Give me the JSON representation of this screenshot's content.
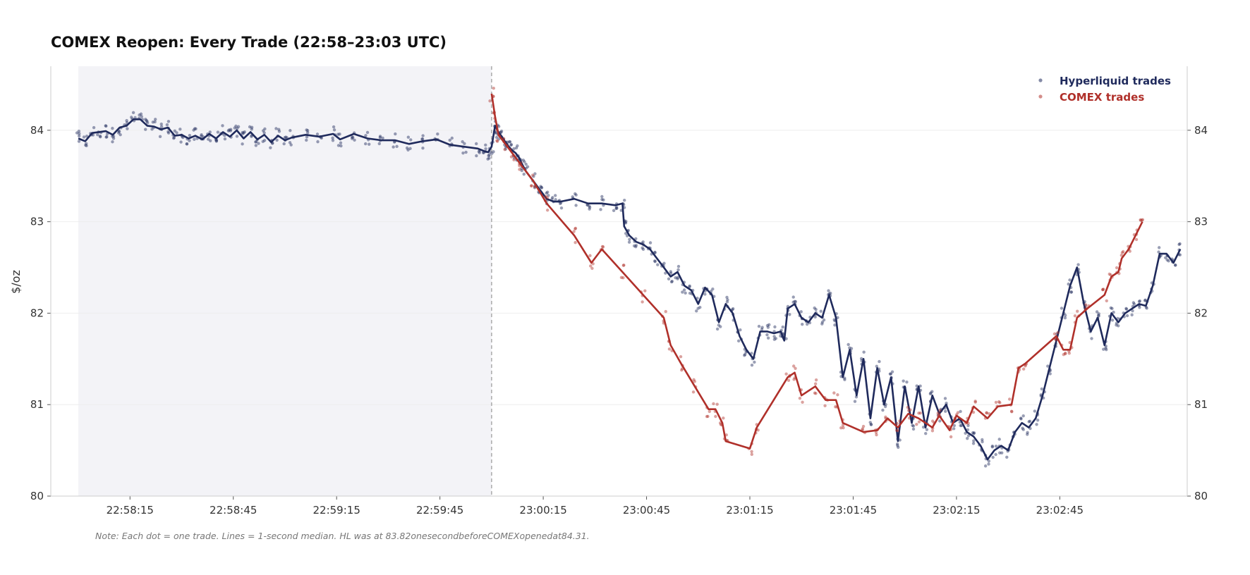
{
  "chart_data": {
    "type": "line",
    "title": "COMEX Reopen: Every Trade (22:58–23:03 UTC)",
    "ylabel": "$/oz",
    "xlabel": "",
    "ylim": [
      80,
      84.7
    ],
    "xlim": [
      "22:57:52",
      "23:03:22"
    ],
    "x_ticks": [
      "22:58:15",
      "22:58:45",
      "22:59:15",
      "22:59:45",
      "23:00:15",
      "23:00:45",
      "23:01:15",
      "23:01:45",
      "23:02:15",
      "23:02:45"
    ],
    "y_ticks": [
      "80",
      "81",
      "82",
      "83",
      "84"
    ],
    "shaded_region": {
      "from": "22:58:00",
      "to": "23:00:00"
    },
    "reference_line": {
      "x": "23:00:00"
    },
    "grid": true,
    "legend_position": "top-right",
    "series": [
      {
        "name": "Hyperliquid trades",
        "color": "#1f2a5c",
        "points": [
          [
            "22:58:00",
            83.91
          ],
          [
            "22:58:02",
            83.88
          ],
          [
            "22:58:04",
            83.97
          ],
          [
            "22:58:06",
            83.98
          ],
          [
            "22:58:08",
            83.99
          ],
          [
            "22:58:10",
            83.95
          ],
          [
            "22:58:12",
            84.03
          ],
          [
            "22:58:14",
            84.05
          ],
          [
            "22:58:16",
            84.12
          ],
          [
            "22:58:18",
            84.12
          ],
          [
            "22:58:20",
            84.05
          ],
          [
            "22:58:22",
            84.04
          ],
          [
            "22:58:24",
            84.01
          ],
          [
            "22:58:26",
            84.03
          ],
          [
            "22:58:28",
            83.94
          ],
          [
            "22:58:30",
            83.95
          ],
          [
            "22:58:32",
            83.91
          ],
          [
            "22:58:34",
            83.94
          ],
          [
            "22:58:36",
            83.9
          ],
          [
            "22:58:38",
            83.96
          ],
          [
            "22:58:40",
            83.91
          ],
          [
            "22:58:42",
            83.98
          ],
          [
            "22:58:44",
            83.93
          ],
          [
            "22:58:46",
            84.0
          ],
          [
            "22:58:48",
            83.91
          ],
          [
            "22:58:50",
            83.98
          ],
          [
            "22:58:52",
            83.9
          ],
          [
            "22:58:54",
            83.95
          ],
          [
            "22:58:56",
            83.87
          ],
          [
            "22:58:58",
            83.94
          ],
          [
            "22:59:00",
            83.89
          ],
          [
            "22:59:02",
            83.92
          ],
          [
            "22:59:06",
            83.95
          ],
          [
            "22:59:10",
            83.93
          ],
          [
            "22:59:14",
            83.96
          ],
          [
            "22:59:16",
            83.9
          ],
          [
            "22:59:20",
            83.96
          ],
          [
            "22:59:24",
            83.91
          ],
          [
            "22:59:28",
            83.89
          ],
          [
            "22:59:32",
            83.89
          ],
          [
            "22:59:36",
            83.85
          ],
          [
            "22:59:40",
            83.88
          ],
          [
            "22:59:44",
            83.9
          ],
          [
            "22:59:48",
            83.84
          ],
          [
            "22:59:52",
            83.82
          ],
          [
            "22:59:56",
            83.8
          ],
          [
            "22:59:58",
            83.77
          ],
          [
            "22:59:59",
            83.76
          ],
          [
            "23:00:00",
            83.82
          ],
          [
            "23:00:01",
            84.05
          ],
          [
            "23:00:02",
            83.98
          ],
          [
            "23:00:03",
            83.93
          ],
          [
            "23:00:04",
            83.87
          ],
          [
            "23:00:05",
            83.82
          ],
          [
            "23:00:06",
            83.78
          ],
          [
            "23:00:07",
            83.75
          ],
          [
            "23:00:08",
            83.7
          ],
          [
            "23:00:09",
            83.62
          ],
          [
            "23:00:10",
            83.55
          ],
          [
            "23:00:12",
            83.45
          ],
          [
            "23:00:14",
            83.35
          ],
          [
            "23:00:16",
            83.25
          ],
          [
            "23:00:18",
            83.22
          ],
          [
            "23:00:20",
            83.22
          ],
          [
            "23:00:24",
            83.25
          ],
          [
            "23:00:28",
            83.2
          ],
          [
            "23:00:32",
            83.2
          ],
          [
            "23:00:36",
            83.18
          ],
          [
            "23:00:38",
            83.2
          ],
          [
            "23:00:38.5",
            82.95
          ],
          [
            "23:00:40",
            82.85
          ],
          [
            "23:00:42",
            82.78
          ],
          [
            "23:00:44",
            82.75
          ],
          [
            "23:00:46",
            82.7
          ],
          [
            "23:00:48",
            82.6
          ],
          [
            "23:00:50",
            82.5
          ],
          [
            "23:00:52",
            82.4
          ],
          [
            "23:00:54",
            82.45
          ],
          [
            "23:00:56",
            82.3
          ],
          [
            "23:00:58",
            82.25
          ],
          [
            "23:01:00",
            82.1
          ],
          [
            "23:01:02",
            82.28
          ],
          [
            "23:01:04",
            82.2
          ],
          [
            "23:01:06",
            81.9
          ],
          [
            "23:01:08",
            82.1
          ],
          [
            "23:01:10",
            82.0
          ],
          [
            "23:01:12",
            81.75
          ],
          [
            "23:01:14",
            81.6
          ],
          [
            "23:01:16",
            81.5
          ],
          [
            "23:01:18",
            81.8
          ],
          [
            "23:01:20",
            81.8
          ],
          [
            "23:01:22",
            81.78
          ],
          [
            "23:01:24",
            81.8
          ],
          [
            "23:01:25",
            81.7
          ],
          [
            "23:01:26",
            82.05
          ],
          [
            "23:01:28",
            82.1
          ],
          [
            "23:01:30",
            81.95
          ],
          [
            "23:01:32",
            81.9
          ],
          [
            "23:01:34",
            82.0
          ],
          [
            "23:01:36",
            81.95
          ],
          [
            "23:01:38",
            82.2
          ],
          [
            "23:01:40",
            81.95
          ],
          [
            "23:01:42",
            81.3
          ],
          [
            "23:01:44",
            81.6
          ],
          [
            "23:01:46",
            81.1
          ],
          [
            "23:01:48",
            81.5
          ],
          [
            "23:01:50",
            80.85
          ],
          [
            "23:01:52",
            81.4
          ],
          [
            "23:01:54",
            81.0
          ],
          [
            "23:01:56",
            81.3
          ],
          [
            "23:01:58",
            80.6
          ],
          [
            "23:02:00",
            81.2
          ],
          [
            "23:02:02",
            80.8
          ],
          [
            "23:02:04",
            81.2
          ],
          [
            "23:02:06",
            80.75
          ],
          [
            "23:02:08",
            81.1
          ],
          [
            "23:02:10",
            80.9
          ],
          [
            "23:02:12",
            81.0
          ],
          [
            "23:02:14",
            80.8
          ],
          [
            "23:02:16",
            80.85
          ],
          [
            "23:02:18",
            80.7
          ],
          [
            "23:02:20",
            80.65
          ],
          [
            "23:02:22",
            80.55
          ],
          [
            "23:02:24",
            80.4
          ],
          [
            "23:02:26",
            80.5
          ],
          [
            "23:02:28",
            80.55
          ],
          [
            "23:02:30",
            80.5
          ],
          [
            "23:02:32",
            80.7
          ],
          [
            "23:02:34",
            80.8
          ],
          [
            "23:02:36",
            80.75
          ],
          [
            "23:02:38",
            80.85
          ],
          [
            "23:02:40",
            81.1
          ],
          [
            "23:02:42",
            81.4
          ],
          [
            "23:02:44",
            81.7
          ],
          [
            "23:02:46",
            82.0
          ],
          [
            "23:02:48",
            82.3
          ],
          [
            "23:02:50",
            82.5
          ],
          [
            "23:02:52",
            82.1
          ],
          [
            "23:02:54",
            81.8
          ],
          [
            "23:02:56",
            81.95
          ],
          [
            "23:02:58",
            81.65
          ],
          [
            "23:03:00",
            82.0
          ],
          [
            "23:03:02",
            81.9
          ],
          [
            "23:03:04",
            82.0
          ],
          [
            "23:03:06",
            82.05
          ],
          [
            "23:03:08",
            82.1
          ],
          [
            "23:03:10",
            82.08
          ],
          [
            "23:03:12",
            82.3
          ],
          [
            "23:03:14",
            82.65
          ],
          [
            "23:03:16",
            82.65
          ],
          [
            "23:03:18",
            82.55
          ],
          [
            "23:03:20",
            82.7
          ]
        ]
      },
      {
        "name": "COMEX trades",
        "color": "#b0302a",
        "points": [
          [
            "23:00:00",
            84.4
          ],
          [
            "23:00:01",
            84.15
          ],
          [
            "23:00:02",
            83.95
          ],
          [
            "23:00:04",
            83.85
          ],
          [
            "23:00:06",
            83.75
          ],
          [
            "23:00:08",
            83.65
          ],
          [
            "23:00:12",
            83.45
          ],
          [
            "23:00:16",
            83.2
          ],
          [
            "23:00:24",
            82.85
          ],
          [
            "23:00:29",
            82.55
          ],
          [
            "23:00:32",
            82.7
          ],
          [
            "23:00:38",
            82.45
          ],
          [
            "23:00:44",
            82.2
          ],
          [
            "23:00:50",
            81.95
          ],
          [
            "23:00:52",
            81.65
          ],
          [
            "23:00:55",
            81.45
          ],
          [
            "23:00:59",
            81.2
          ],
          [
            "23:01:03",
            80.95
          ],
          [
            "23:01:05",
            80.95
          ],
          [
            "23:01:07",
            80.8
          ],
          [
            "23:01:08",
            80.6
          ],
          [
            "23:01:15",
            80.52
          ],
          [
            "23:01:17",
            80.75
          ],
          [
            "23:01:26",
            81.3
          ],
          [
            "23:01:28",
            81.35
          ],
          [
            "23:01:30",
            81.1
          ],
          [
            "23:01:34",
            81.2
          ],
          [
            "23:01:37",
            81.05
          ],
          [
            "23:01:40",
            81.05
          ],
          [
            "23:01:42",
            80.8
          ],
          [
            "23:01:48",
            80.7
          ],
          [
            "23:01:52",
            80.72
          ],
          [
            "23:01:55",
            80.85
          ],
          [
            "23:01:58",
            80.75
          ],
          [
            "23:02:01",
            80.9
          ],
          [
            "23:02:04",
            80.85
          ],
          [
            "23:02:08",
            80.75
          ],
          [
            "23:02:10",
            80.88
          ],
          [
            "23:02:13",
            80.72
          ],
          [
            "23:02:15",
            80.88
          ],
          [
            "23:02:18",
            80.8
          ],
          [
            "23:02:20",
            80.98
          ],
          [
            "23:02:24",
            80.85
          ],
          [
            "23:02:27",
            80.98
          ],
          [
            "23:02:31",
            81.0
          ],
          [
            "23:02:33",
            81.4
          ],
          [
            "23:02:35",
            81.45
          ],
          [
            "23:02:44",
            81.75
          ],
          [
            "23:02:46",
            81.6
          ],
          [
            "23:02:48",
            81.6
          ],
          [
            "23:02:50",
            81.95
          ],
          [
            "23:02:53",
            82.05
          ],
          [
            "23:02:58",
            82.2
          ],
          [
            "23:03:00",
            82.4
          ],
          [
            "23:03:02",
            82.45
          ],
          [
            "23:03:03",
            82.6
          ],
          [
            "23:03:05",
            82.7
          ],
          [
            "23:03:07",
            82.85
          ],
          [
            "23:03:09",
            83.0
          ]
        ]
      }
    ],
    "note": "Note: Each dot = one trade. Lines = 1-second median. HL was at 83.82onesecondbeforeCOMEXopenedat84.31."
  }
}
